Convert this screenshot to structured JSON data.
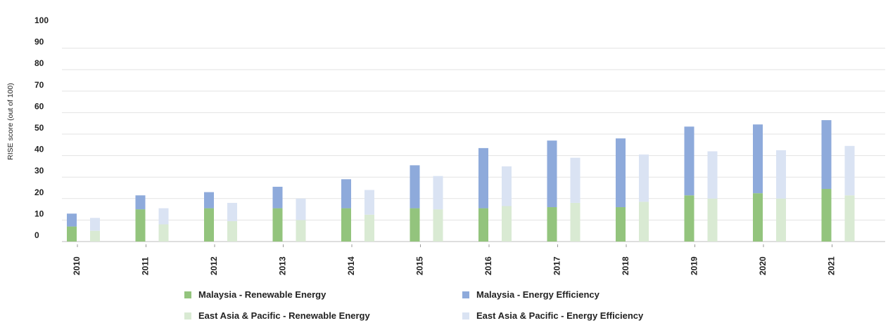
{
  "chart_data": {
    "type": "bar",
    "stacked": true,
    "ylabel": "RISE score (out of 100)",
    "ylim": [
      0,
      100
    ],
    "yticks": [
      0,
      10,
      20,
      30,
      40,
      50,
      60,
      70,
      80,
      90,
      100
    ],
    "grid": true,
    "legend_position": "bottom",
    "categories": [
      "2010",
      "2011",
      "2012",
      "2013",
      "2014",
      "2015",
      "2016",
      "2017",
      "2018",
      "2019",
      "2020",
      "2021"
    ],
    "groups": [
      {
        "name": "Malaysia",
        "series": [
          {
            "name": "Malaysia - Renewable Energy",
            "color": "#93c47d",
            "values": [
              7,
              15,
              15.5,
              15.5,
              15.5,
              15.5,
              15.5,
              16,
              16,
              21.5,
              22.5,
              24.5
            ]
          },
          {
            "name": "Malaysia - Energy Efficiency",
            "color": "#8eaadb",
            "values": [
              6,
              6.5,
              7.5,
              10,
              13.5,
              20,
              28,
              31,
              32,
              32,
              32,
              32
            ]
          }
        ]
      },
      {
        "name": "East Asia & Pacific",
        "series": [
          {
            "name": "East Asia & Pacific - Renewable Energy",
            "color": "#d9ead3",
            "values": [
              5,
              8,
              9.5,
              10,
              12.5,
              15,
              16.5,
              18,
              18.5,
              20,
              20,
              21.5
            ]
          },
          {
            "name": "East Asia & Pacific - Energy Efficiency",
            "color": "#dae3f3",
            "values": [
              6,
              7.5,
              8.5,
              10,
              11.5,
              15.5,
              18.5,
              21,
              22,
              22,
              22.5,
              23
            ]
          }
        ]
      }
    ]
  },
  "legend": {
    "items": [
      {
        "label": "Malaysia - Renewable Energy",
        "color": "#93c47d"
      },
      {
        "label": "Malaysia - Energy Efficiency",
        "color": "#8eaadb"
      },
      {
        "label": "East Asia & Pacific - Renewable Energy",
        "color": "#d9ead3"
      },
      {
        "label": "East Asia & Pacific - Energy Efficiency",
        "color": "#dae3f3"
      }
    ]
  }
}
